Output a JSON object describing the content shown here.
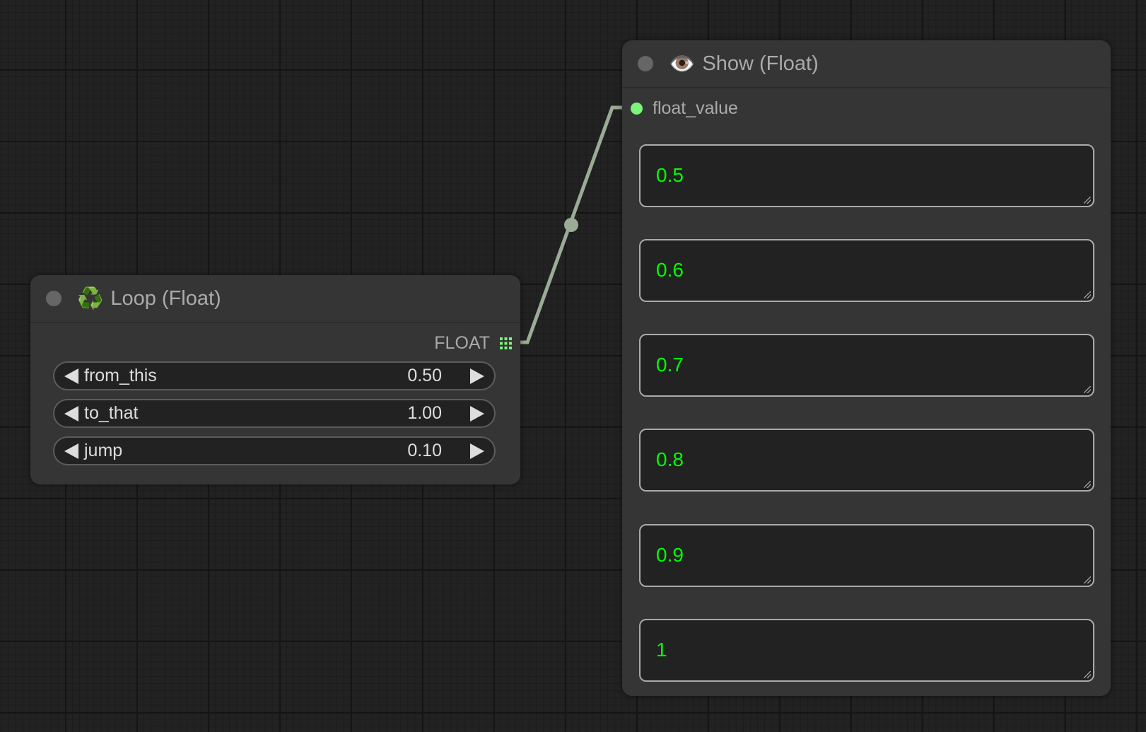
{
  "loop_node": {
    "title": "Loop (Float)",
    "icon": "recycle-icon",
    "output_label": "FLOAT",
    "widgets": [
      {
        "label": "from_this",
        "value": "0.50"
      },
      {
        "label": "to_that",
        "value": "1.00"
      },
      {
        "label": "jump",
        "value": "0.10"
      }
    ]
  },
  "show_node": {
    "title": "Show (Float)",
    "icon": "eye-icon",
    "input_label": "float_value",
    "values": [
      "0.5",
      "0.6",
      "0.7",
      "0.8",
      "0.9",
      "1"
    ]
  },
  "colors": {
    "link": "#9aab96",
    "slot": "#7af57a",
    "value_text": "#00ff00"
  }
}
